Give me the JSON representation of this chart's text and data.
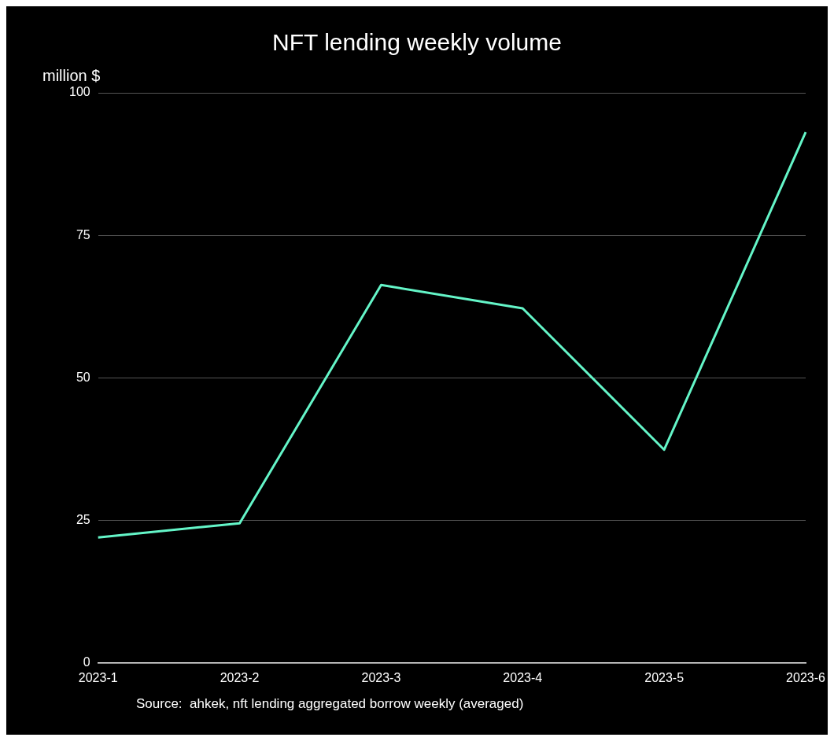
{
  "chart_data": {
    "type": "line",
    "title": "NFT lending weekly volume",
    "ylabel": "million $",
    "categories": [
      "2023-1",
      "2023-2",
      "2023-3",
      "2023-4",
      "2023-5",
      "2023-6"
    ],
    "series": [
      {
        "color": "#64f5c8",
        "values": [
          22,
          24.5,
          66.3,
          62.2,
          37.4,
          93.1
        ]
      }
    ],
    "ylim": [
      0,
      100
    ],
    "yticks": [
      0,
      25,
      50,
      75,
      100
    ],
    "grid": "y",
    "legend": false,
    "marker": "none",
    "line_style": "solid",
    "annotations": [
      "Source:  ahkek, nft lending aggregated borrow weekly (averaged)"
    ]
  }
}
